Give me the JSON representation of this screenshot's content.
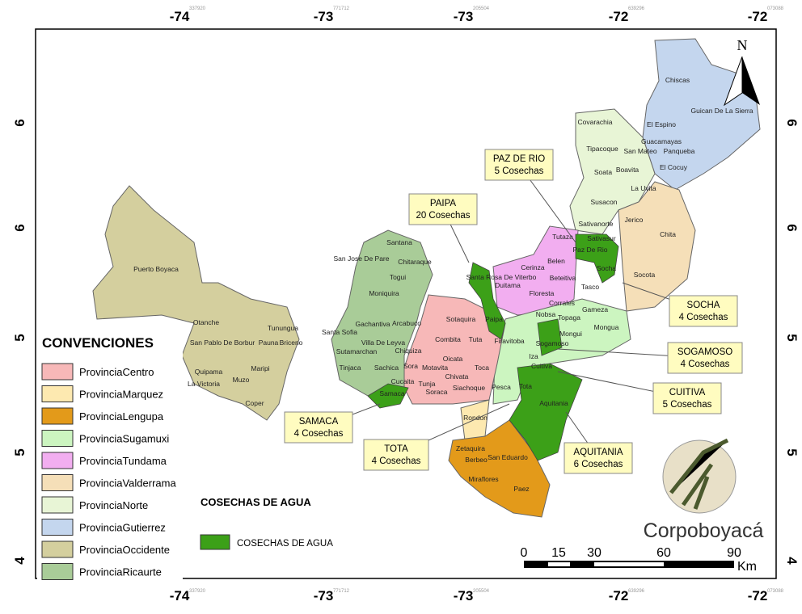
{
  "frame": {
    "top": [
      "-74",
      "-73",
      "-73",
      "-72",
      "-72"
    ],
    "bottom": [
      "-74",
      "-73",
      "-73",
      "-72",
      "-72"
    ],
    "left": [
      "6",
      "6",
      "5",
      "5",
      "4"
    ],
    "right": [
      "6",
      "6",
      "5",
      "5",
      "4"
    ],
    "codes": [
      "337920",
      "771712",
      "205504",
      "639296",
      "073088"
    ]
  },
  "legend": {
    "title": "CONVENCIONES",
    "items": [
      "ProvinciaCentro",
      "ProvinciaMarquez",
      "ProvinciaLengupa",
      "ProvinciaSugamuxi",
      "ProvinciaTundama",
      "ProvinciaValderrama",
      "ProvinciaNorte",
      "ProvinciaGutierrez",
      "ProvinciaOccidente",
      "ProvinciaRicaurte"
    ],
    "cosechas_title": "COSECHAS DE AGUA",
    "cosechas_item": "COSECHAS DE AGUA"
  },
  "callouts": [
    [
      "PAZ DE RIO",
      "5 Cosechas"
    ],
    [
      "PAIPA",
      "20 Cosechas"
    ],
    [
      "SOCHA",
      "4 Cosechas"
    ],
    [
      "SOGAMOSO",
      "4 Cosechas"
    ],
    [
      "CUITIVA",
      "5 Cosechas"
    ],
    [
      "SAMACA",
      "4 Cosechas"
    ],
    [
      "TOTA",
      "4 Cosechas"
    ],
    [
      "AQUITANIA",
      "6 Cosechas"
    ]
  ],
  "municipalities": [
    "Chiscas",
    "Guican De La Sierra",
    "El Espino",
    "Guacamayas",
    "San Mateo",
    "Panqueba",
    "El Cocuy",
    "Covarachia",
    "Tipacoque",
    "Soata",
    "Boavita",
    "La Uvita",
    "Susacon",
    "Sativanorte",
    "Sativasur",
    "Jerico",
    "Chita",
    "Tutaza",
    "Paz De Rio",
    "Belen",
    "Socha",
    "Socota",
    "Tasco",
    "Cerinza",
    "Santa Rosa De Viterbo",
    "Duitama",
    "Beteitiva",
    "Floresta",
    "Corrales",
    "Gameza",
    "Nobsa",
    "Topaga",
    "Mongua",
    "Mongui",
    "Firavitoba",
    "Sogamoso",
    "Iza",
    "Cuitiva",
    "Pesca",
    "Tota",
    "Aquitania",
    "Sotaquira",
    "Paipa",
    "Combita",
    "Tuta",
    "Oicata",
    "Chivata",
    "Toca",
    "Motavita",
    "Sora",
    "Cucaita",
    "Samaca",
    "Tunja",
    "Siachoque",
    "Soraca",
    "Chiquiza",
    "Villa De Leyva",
    "Sachica",
    "Sutamarchan",
    "Tinjaca",
    "Santa Sofia",
    "Gachantiva",
    "Arcabuco",
    "Moniquira",
    "Togui",
    "Chitaraque",
    "San Jose De Pare",
    "Santana",
    "Puerto Boyaca",
    "Otanche",
    "San Pablo De Borbur",
    "Tunungua",
    "Pauna",
    "Briceno",
    "Maripi",
    "Quipama",
    "La Victoria",
    "Muzo",
    "Coper",
    "Rondon",
    "Zetaquira",
    "Berbeo",
    "San Eduardo",
    "Miraflores",
    "Paez"
  ],
  "scale": {
    "labels": [
      "0",
      "15",
      "30",
      "60",
      "90"
    ],
    "unit": "Km"
  },
  "north": "N",
  "logo": "Corpoboyacá"
}
